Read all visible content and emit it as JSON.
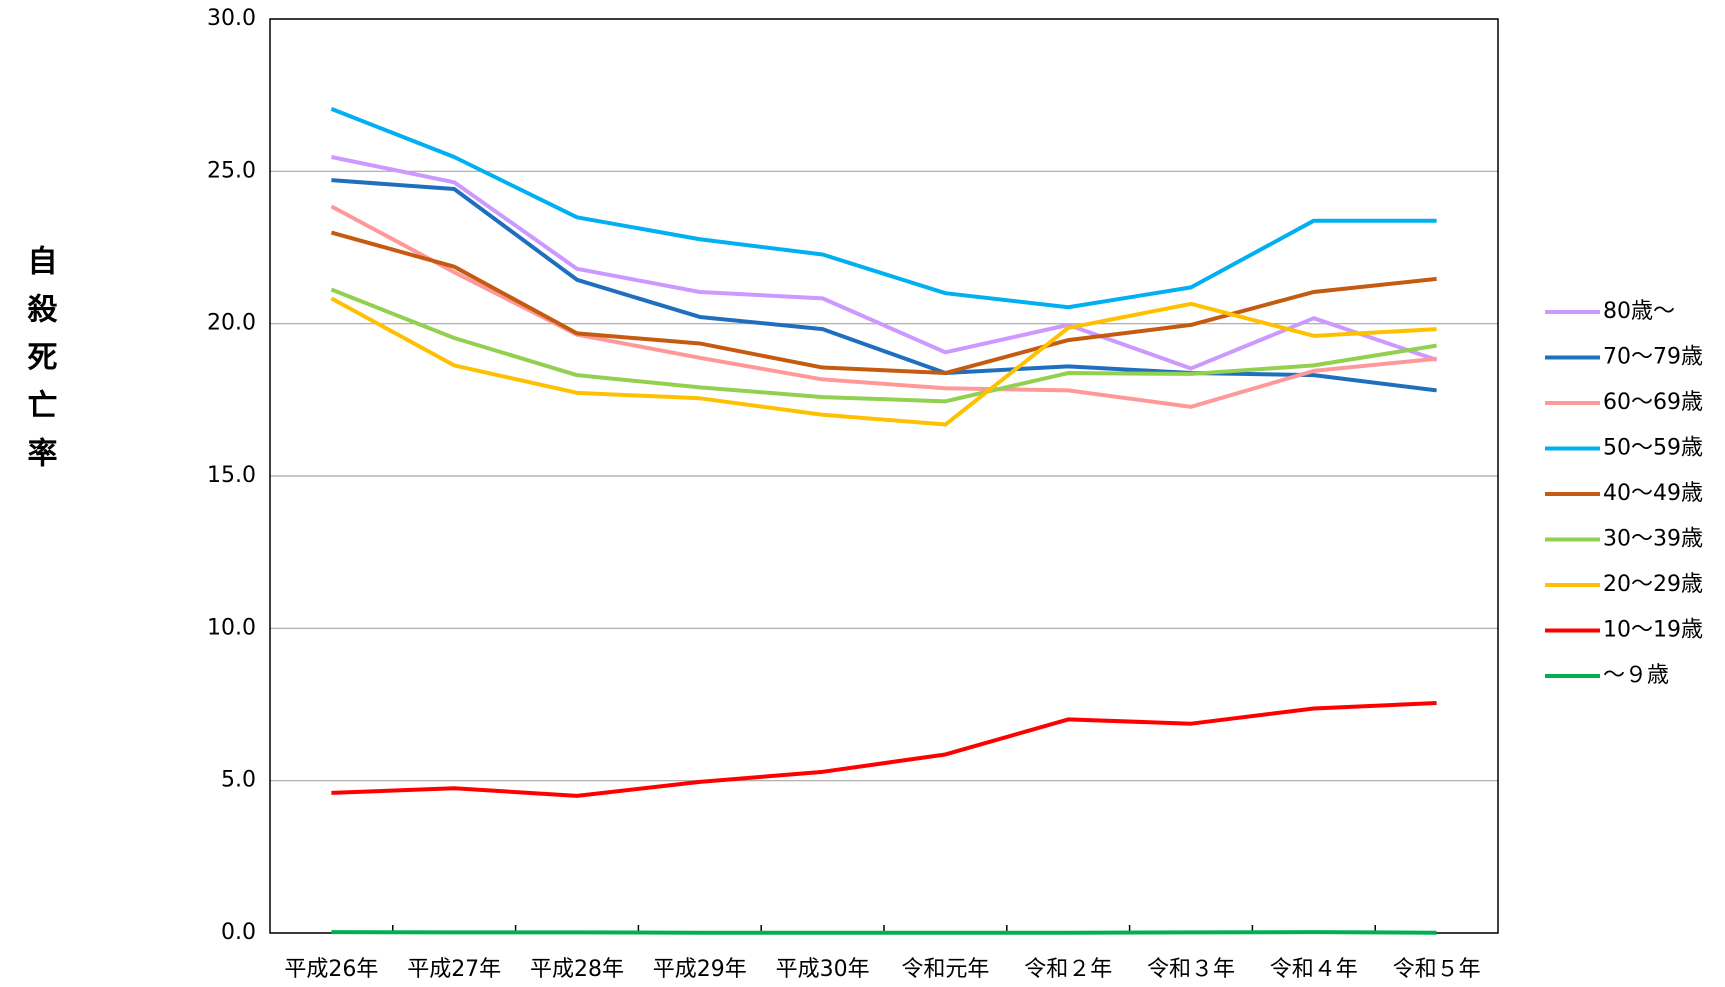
{
  "chart_data": {
    "type": "line",
    "y_label": "自殺死亡率",
    "categories": [
      "平成26年",
      "平成27年",
      "平成28年",
      "平成29年",
      "平成30年",
      "令和元年",
      "令和２年",
      "令和３年",
      "令和４年",
      "令和５年"
    ],
    "series": [
      {
        "name": "80歳～",
        "color": "#cc99ff",
        "values": [
          25.47,
          24.64,
          21.8,
          21.04,
          20.83,
          19.06,
          19.96,
          18.53,
          20.18,
          18.81
        ]
      },
      {
        "name": "70～79歳",
        "color": "#1f6fbf",
        "values": [
          24.71,
          24.42,
          21.44,
          20.22,
          19.82,
          18.38,
          18.6,
          18.38,
          18.31,
          17.81
        ]
      },
      {
        "name": "60～69歳",
        "color": "#ff9999",
        "values": [
          23.85,
          21.69,
          19.64,
          18.88,
          18.17,
          17.88,
          17.81,
          17.27,
          18.45,
          18.85
        ]
      },
      {
        "name": "50～59歳",
        "color": "#00b0f0",
        "values": [
          27.05,
          25.47,
          23.49,
          22.77,
          22.27,
          21.0,
          20.54,
          21.19,
          23.38,
          23.38
        ]
      },
      {
        "name": "40～49歳",
        "color": "#c55a11",
        "values": [
          22.99,
          21.87,
          19.68,
          19.35,
          18.56,
          18.38,
          19.46,
          19.96,
          21.04,
          21.47
        ]
      },
      {
        "name": "30～39歳",
        "color": "#92d050",
        "values": [
          21.12,
          19.53,
          18.31,
          17.91,
          17.59,
          17.45,
          18.38,
          18.35,
          18.63,
          19.28
        ]
      },
      {
        "name": "20～29歳",
        "color": "#ffc000",
        "values": [
          20.83,
          18.63,
          17.73,
          17.55,
          17.01,
          16.69,
          19.86,
          20.65,
          19.6,
          19.82
        ]
      },
      {
        "name": "10～19歳",
        "color": "#ff0000",
        "values": [
          4.6,
          4.75,
          4.5,
          4.96,
          5.29,
          5.86,
          7.01,
          6.87,
          7.37,
          7.55
        ]
      },
      {
        "name": "～９歳",
        "color": "#00b050",
        "values": [
          0.03,
          0.02,
          0.02,
          0.01,
          0.01,
          0.01,
          0.01,
          0.02,
          0.03,
          0.01
        ]
      }
    ],
    "ylim": [
      0,
      30
    ],
    "yticks": [
      {
        "value": 0,
        "label": "0.0"
      },
      {
        "value": 5,
        "label": "5.0"
      },
      {
        "value": 10,
        "label": "10.0"
      },
      {
        "value": 15,
        "label": "15.0"
      },
      {
        "value": 20,
        "label": "20.0"
      },
      {
        "value": 25,
        "label": "25.0"
      },
      {
        "value": 30,
        "label": "30.0"
      }
    ],
    "grid": true,
    "legend": "right"
  }
}
